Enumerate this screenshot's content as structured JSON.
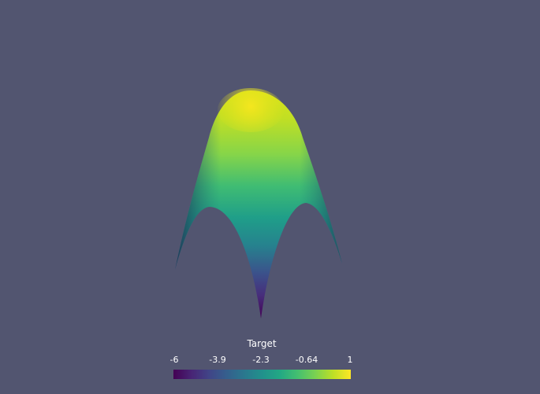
{
  "scene": {
    "background": "#525570",
    "surface_colormap": "viridis"
  },
  "colorbar": {
    "title": "Target",
    "ticks": [
      "-6",
      "-3.9",
      "-2.3",
      "-0.64",
      "1"
    ],
    "min": -6,
    "max": 1,
    "colors": [
      "#440154",
      "#3b528b",
      "#21918c",
      "#5ec962",
      "#fde725"
    ]
  }
}
